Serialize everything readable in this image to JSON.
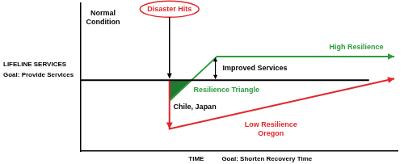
{
  "chart_data": {
    "type": "line",
    "ylabel": "LIFELINE SERVICES\nGoal: Provide Services",
    "xlabel": [
      "TIME",
      "Goal: Shorten Recovery Time"
    ],
    "xlim": [
      0,
      100
    ],
    "ylim": [
      0,
      100
    ],
    "grid": false,
    "tick_labels": false,
    "series": [
      {
        "color": "#000000",
        "x": [
          0,
          91
        ],
        "values": [
          48,
          48
        ]
      },
      {
        "color": "#2e9b3f",
        "x": [
          28,
          43,
          99
        ],
        "values": [
          34,
          64,
          64
        ],
        "marker": "arrow"
      },
      {
        "type": "area",
        "color": "#1f7a30",
        "x": [
          28,
          28,
          35
        ],
        "values": [
          48,
          34,
          48
        ]
      },
      {
        "color": "#e3262b",
        "x": [
          28,
          28,
          99
        ],
        "values": [
          48,
          15,
          49
        ],
        "marker": "arrow"
      }
    ],
    "annotations": [
      {
        "text": "Disaster Hits",
        "x": 28,
        "y": 96,
        "color": "#e3262b",
        "marker": "ellipse"
      },
      {
        "text": "Normal\nCondition",
        "x": 7,
        "y": 90,
        "color": "#000000"
      },
      {
        "text": "Improved Services",
        "x": 55,
        "y": 56,
        "color": "#000000"
      },
      {
        "text": "High Resilience",
        "x": 87,
        "y": 70,
        "color": "#2e9b3f"
      },
      {
        "text": "Resilience Triangle",
        "x": 46,
        "y": 41,
        "color": "#2e9b3f"
      },
      {
        "text": "Chile, Japan",
        "x": 36,
        "y": 30,
        "color": "#000000"
      },
      {
        "text": "Low Resilience\nOregon",
        "x": 60,
        "y": 15,
        "color": "#e3262b"
      }
    ]
  }
}
